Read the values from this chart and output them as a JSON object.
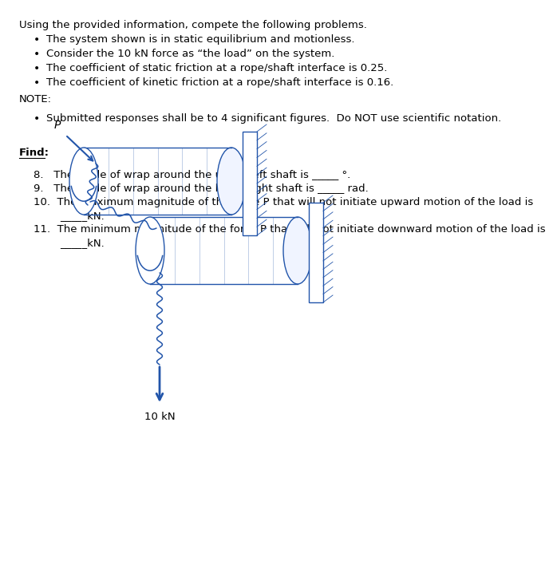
{
  "title_line": "Using the provided information, compete the following problems.",
  "bullets": [
    "The system shown is in static equilibrium and motionless.",
    "Consider the 10 kN force as “the load” on the system.",
    "The coefficient of static friction at a rope/shaft interface is 0.25.",
    "The coefficient of kinetic friction at a rope/shaft interface is 0.16."
  ],
  "note_label": "NOTE:",
  "note_bullet": "Submitted responses shall be to 4 significant figures.  Do NOT use scientific notation.",
  "find_label": "Find:",
  "find_items_8": "8.   The angle of wrap around the upper-left shaft is _____ °.",
  "find_items_9": "9.   The angle of wrap around the lower-right shaft is _____ rad.",
  "find_items_10a": "10.  The maximum magnitude of the force P that will not initiate upward motion of the load is",
  "find_items_10b": "        _____kN.",
  "find_items_11a": "11.  The minimum magnitude of the force P that will not initiate downward motion of the load is",
  "find_items_11b": "        _____kN.",
  "load_label": "10 kN",
  "P_label": "P",
  "bg_color": "#ffffff",
  "text_color": "#000000",
  "diagram_color": "#2255aa",
  "font_size_body": 9.5
}
